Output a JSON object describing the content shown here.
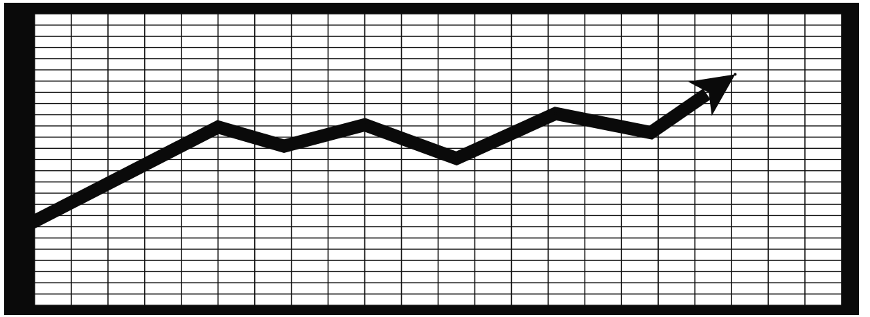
{
  "colors": {
    "frame": "#0a0a0a",
    "paper": "#ffffff",
    "grid": "#111111",
    "line": "#0a0a0a"
  },
  "chart_data": {
    "type": "line",
    "title": "",
    "xlabel": "",
    "ylabel": "",
    "grid": true,
    "legend": "none",
    "xlim": [
      0,
      22
    ],
    "ylim": [
      0,
      26
    ],
    "x": [
      0,
      5,
      6.8,
      9,
      11.5,
      14.2,
      16.8,
      19.1
    ],
    "series": [
      {
        "values": [
          7.5,
          15.9,
          14.2,
          16.1,
          13.1,
          17.1,
          15.4,
          20.6
        ]
      }
    ],
    "end_marker": "arrowhead"
  }
}
